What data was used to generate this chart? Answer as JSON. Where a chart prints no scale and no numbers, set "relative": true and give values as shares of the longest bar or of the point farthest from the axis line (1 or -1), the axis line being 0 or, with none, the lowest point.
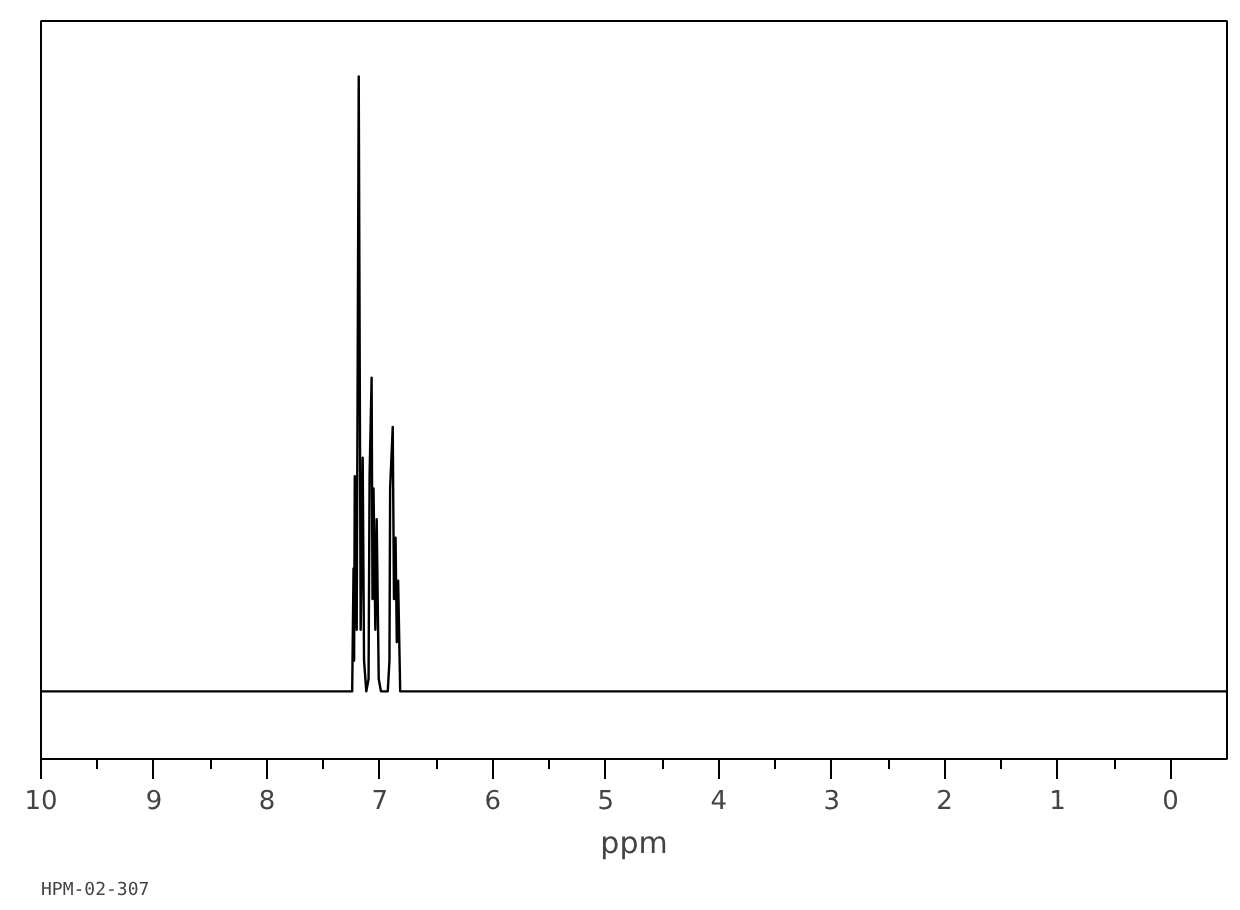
{
  "chart_data": {
    "type": "line",
    "relative": true,
    "xlabel": "ppm",
    "annotations": [
      "HPM-02-307"
    ],
    "xlim": [
      10,
      -0.5
    ],
    "xticks": [
      10,
      9,
      8,
      7,
      6,
      5,
      4,
      3,
      2,
      1,
      0
    ],
    "grid": false,
    "marker": "none",
    "line_style": "solid",
    "series": [
      {
        "color": "#000000",
        "x": [
          10,
          7.26,
          7.245,
          7.233,
          7.228,
          7.222,
          7.205,
          7.187,
          7.17,
          7.152,
          7.14,
          7.12,
          7.1,
          7.091,
          7.073,
          7.065,
          7.056,
          7.04,
          7.028,
          7.01,
          6.99,
          6.93,
          6.915,
          6.909,
          6.886,
          6.875,
          6.861,
          6.85,
          6.838,
          6.82,
          -0.5
        ],
        "values": [
          0,
          0,
          0,
          0.2,
          0.05,
          0.35,
          0.1,
          1,
          0.1,
          0.38,
          0.05,
          0,
          0.02,
          0.35,
          0.51,
          0.15,
          0.33,
          0.1,
          0.28,
          0.02,
          0,
          0,
          0.05,
          0.33,
          0.43,
          0.15,
          0.25,
          0.08,
          0.18,
          0,
          0
        ]
      }
    ]
  }
}
